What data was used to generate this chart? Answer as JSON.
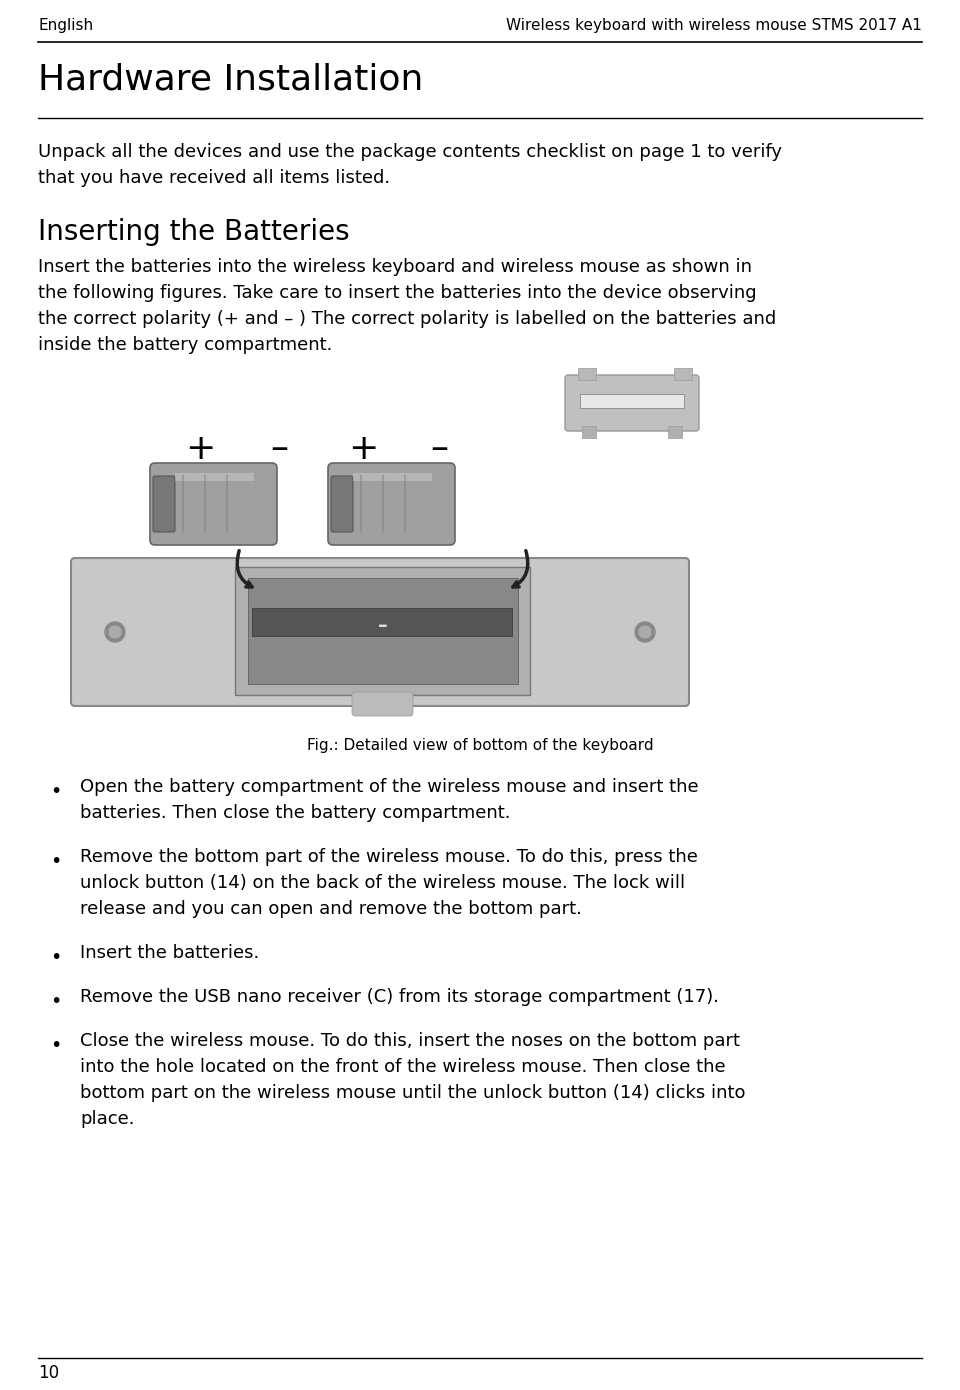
{
  "header_left": "English",
  "header_right": "Wireless keyboard with wireless mouse STMS 2017 A1",
  "title": "Hardware Installation",
  "intro_lines": [
    "Unpack all the devices and use the package contents checklist on page 1 to verify",
    "that you have received all items listed."
  ],
  "section2": "Inserting the Batteries",
  "para2_lines": [
    "Insert the batteries into the wireless keyboard and wireless mouse as shown in",
    "the following figures. Take care to insert the batteries into the device observing",
    "the correct polarity (+ and – ) The correct polarity is labelled on the batteries and",
    "inside the battery compartment."
  ],
  "fig_caption": "Fig.: Detailed view of bottom of the keyboard",
  "bullets": [
    "Open the battery compartment of the wireless mouse and insert the\nbatteries. Then close the battery compartment.",
    "Remove the bottom part of the wireless mouse. To do this, press the\nunlock button (14) on the back of the wireless mouse. The lock will\nrelease and you can open and remove the bottom part.",
    "Insert the batteries.",
    "Remove the USB nano receiver (C) from its storage compartment (17).",
    "Close the wireless mouse. To do this, insert the noses on the bottom part\ninto the hole located on the front of the wireless mouse. Then close the\nbottom part on the wireless mouse until the unlock button (14) clicks into\nplace."
  ],
  "page_num": "10",
  "bg_color": "#ffffff",
  "text_color": "#000000",
  "line_color": "#000000"
}
